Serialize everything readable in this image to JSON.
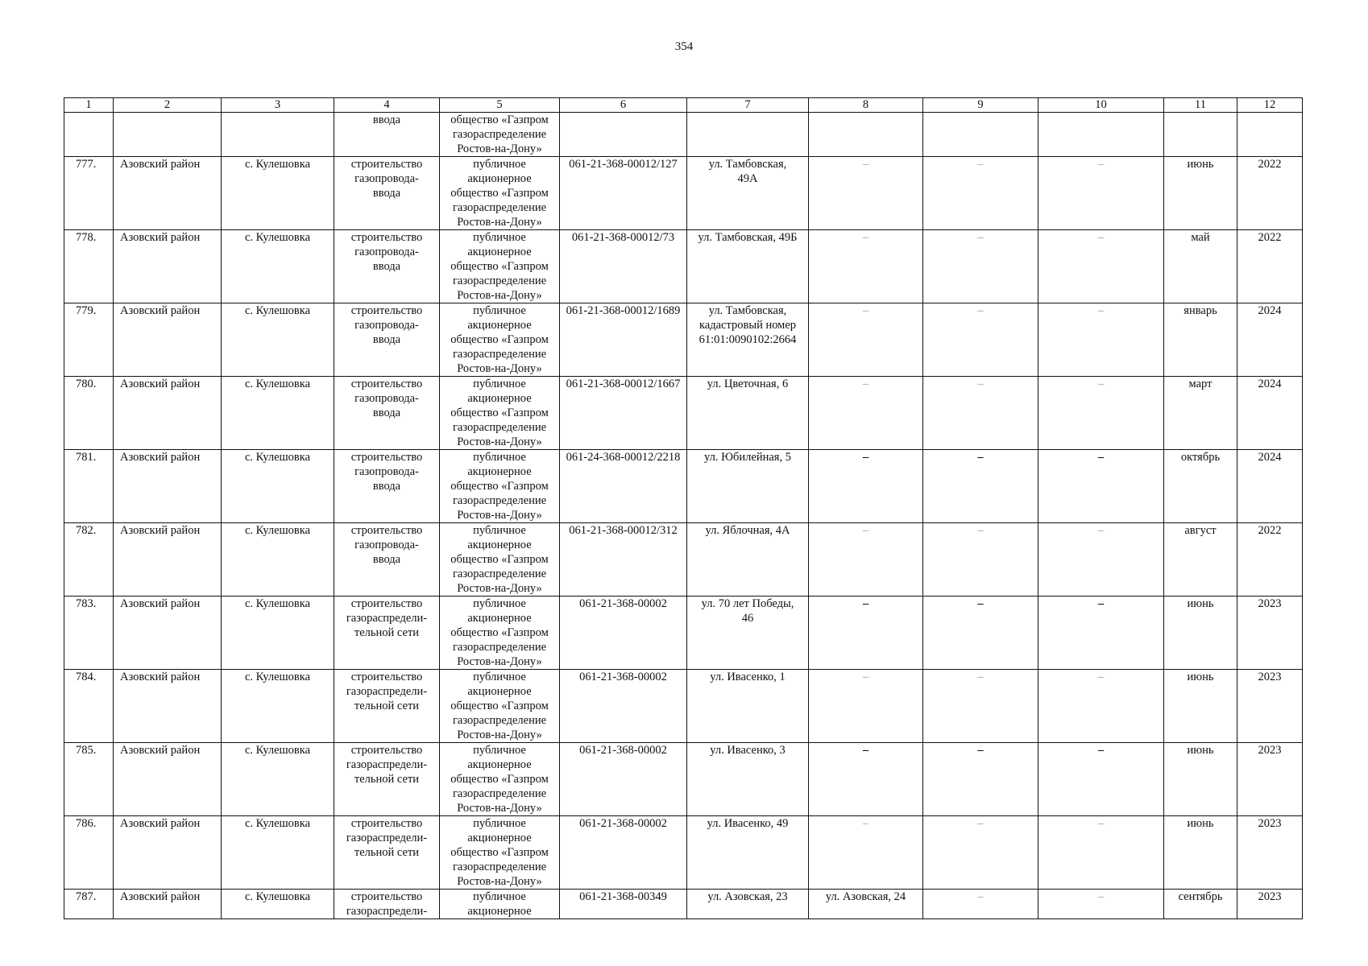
{
  "page_number": "354",
  "table": {
    "header": [
      "1",
      "2",
      "3",
      "4",
      "5",
      "6",
      "7",
      "8",
      "9",
      "10",
      "11",
      "12"
    ],
    "rows": [
      {
        "cells": [
          "",
          "",
          "",
          "ввода",
          "общество «Газпром\nгазораспределение\nРостов-на-Дону»",
          "",
          "",
          "",
          "",
          "",
          "",
          ""
        ],
        "dash": "light"
      },
      {
        "cells": [
          "777.",
          "Азовский район",
          "с. Кулешовка",
          "строительство\nгазопровода-\nввода",
          "публичное\nакционерное\nобщество «Газпром\nгазораспределение\nРостов-на-Дону»",
          "061-21-368-00012/127",
          "ул. Тамбовская,\n49А",
          "–",
          "–",
          "–",
          "июнь",
          "2022"
        ],
        "dash": "light"
      },
      {
        "cells": [
          "778.",
          "Азовский район",
          "с. Кулешовка",
          "строительство\nгазопровода-\nввода",
          "публичное\nакционерное\nобщество «Газпром\nгазораспределение\nРостов-на-Дону»",
          "061-21-368-00012/73",
          "ул. Тамбовская, 49Б",
          "–",
          "–",
          "–",
          "май",
          "2022"
        ],
        "dash": "light"
      },
      {
        "cells": [
          "779.",
          "Азовский район",
          "с. Кулешовка",
          "строительство\nгазопровода-\nввода",
          "публичное\nакционерное\nобщество «Газпром\nгазораспределение\nРостов-на-Дону»",
          "061-21-368-00012/1689",
          "ул. Тамбовская,\nкадастровый номер\n61:01:0090102:2664",
          "–",
          "–",
          "–",
          "январь",
          "2024"
        ],
        "dash": "light"
      },
      {
        "cells": [
          "780.",
          "Азовский район",
          "с. Кулешовка",
          "строительство\nгазопровода-\nввода",
          "публичное\nакционерное\nобщество «Газпром\nгазораспределение\nРостов-на-Дону»",
          "061-21-368-00012/1667",
          "ул. Цветочная, 6",
          "–",
          "–",
          "–",
          "март",
          "2024"
        ],
        "dash": "light"
      },
      {
        "cells": [
          "781.",
          "Азовский район",
          "с. Кулешовка",
          "строительство\nгазопровода-\nввода",
          "публичное\nакционерное\nобщество «Газпром\nгазораспределение\nРостов-на-Дону»",
          "061-24-368-00012/2218",
          "ул. Юбилейная, 5",
          "–",
          "–",
          "–",
          "октябрь",
          "2024"
        ],
        "dash": "dark"
      },
      {
        "cells": [
          "782.",
          "Азовский район",
          "с. Кулешовка",
          "строительство\nгазопровода-\nввода",
          "публичное\nакционерное\nобщество «Газпром\nгазораспределение\nРостов-на-Дону»",
          "061-21-368-00012/312",
          "ул. Яблочная, 4А",
          "–",
          "–",
          "–",
          "август",
          "2022"
        ],
        "dash": "light"
      },
      {
        "cells": [
          "783.",
          "Азовский район",
          "с. Кулешовка",
          "строительство\nгазораспредели-\nтельной сети",
          "публичное\nакционерное\nобщество «Газпром\nгазораспределение\nРостов-на-Дону»",
          "061-21-368-00002",
          "ул. 70 лет Победы,\n46",
          "–",
          "–",
          "–",
          "июнь",
          "2023"
        ],
        "dash": "dark"
      },
      {
        "cells": [
          "784.",
          "Азовский район",
          "с. Кулешовка",
          "строительство\nгазораспредели-\nтельной сети",
          "публичное\nакционерное\nобщество «Газпром\nгазораспределение\nРостов-на-Дону»",
          "061-21-368-00002",
          "ул. Ивасенко, 1",
          "–",
          "–",
          "–",
          "июнь",
          "2023"
        ],
        "dash": "light"
      },
      {
        "cells": [
          "785.",
          "Азовский район",
          "с. Кулешовка",
          "строительство\nгазораспредели-\nтельной сети",
          "публичное\nакционерное\nобщество «Газпром\nгазораспределение\nРостов-на-Дону»",
          "061-21-368-00002",
          "ул. Ивасенко, 3",
          "–",
          "–",
          "–",
          "июнь",
          "2023"
        ],
        "dash": "dark"
      },
      {
        "cells": [
          "786.",
          "Азовский район",
          "с. Кулешовка",
          "строительство\nгазораспредели-\nтельной сети",
          "публичное\nакционерное\nобщество «Газпром\nгазораспределение\nРостов-на-Дону»",
          "061-21-368-00002",
          "ул. Ивасенко, 49",
          "–",
          "–",
          "–",
          "июнь",
          "2023"
        ],
        "dash": "light"
      },
      {
        "cells": [
          "787.",
          "Азовский район",
          "с. Кулешовка",
          "строительство\nгазораспредели-",
          "публичное\nакционерное",
          "061-21-368-00349",
          "ул. Азовская, 23",
          "ул. Азовская, 24",
          "–",
          "–",
          "сентябрь",
          "2023"
        ],
        "dash": "light"
      }
    ]
  }
}
